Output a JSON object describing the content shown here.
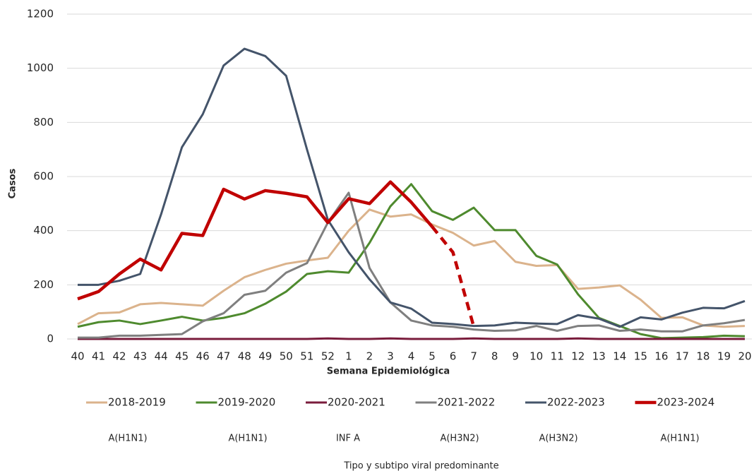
{
  "chart_data": {
    "type": "line",
    "y_label": "Casos",
    "x_label": "Semana Epidemiológica",
    "categories": [
      "40",
      "41",
      "42",
      "43",
      "44",
      "45",
      "46",
      "47",
      "48",
      "49",
      "50",
      "51",
      "52",
      "1",
      "2",
      "3",
      "4",
      "5",
      "6",
      "7",
      "8",
      "9",
      "10",
      "11",
      "12",
      "13",
      "14",
      "15",
      "16",
      "17",
      "18",
      "19",
      "20"
    ],
    "ylim": [
      0,
      1200
    ],
    "yticks": [
      0,
      200,
      400,
      600,
      800,
      1000,
      1200
    ],
    "grid": true,
    "series": [
      {
        "name": "2018-2019",
        "color": "#dbb38c",
        "width": 3,
        "values": [
          55,
          95,
          98,
          128,
          133,
          128,
          123,
          178,
          228,
          255,
          278,
          290,
          300,
          400,
          478,
          452,
          460,
          423,
          392,
          345,
          362,
          285,
          270,
          273,
          185,
          190,
          198,
          145,
          78,
          80,
          50,
          45,
          48
        ]
      },
      {
        "name": "2019-2020",
        "color": "#4e8a2e",
        "width": 3,
        "values": [
          45,
          62,
          68,
          55,
          68,
          82,
          68,
          78,
          95,
          130,
          175,
          240,
          250,
          245,
          355,
          490,
          572,
          472,
          440,
          485,
          402,
          402,
          307,
          275,
          165,
          78,
          48,
          18,
          3,
          5,
          7,
          12,
          10
        ]
      },
      {
        "name": "2020-2021",
        "color": "#7a1c3c",
        "width": 3,
        "values": [
          0,
          0,
          0,
          0,
          0,
          0,
          0,
          0,
          0,
          0,
          0,
          0,
          2,
          0,
          0,
          2,
          0,
          0,
          0,
          2,
          0,
          0,
          0,
          0,
          2,
          0,
          0,
          0,
          0,
          0,
          0,
          0,
          0
        ]
      },
      {
        "name": "2021-2022",
        "color": "#7f7f7f",
        "width": 3,
        "values": [
          5,
          5,
          12,
          12,
          15,
          18,
          65,
          95,
          163,
          178,
          245,
          280,
          430,
          540,
          262,
          135,
          68,
          50,
          45,
          35,
          30,
          32,
          48,
          30,
          48,
          50,
          30,
          35,
          28,
          28,
          50,
          58,
          70
        ]
      },
      {
        "name": "2022-2023",
        "color": "#44546a",
        "width": 3,
        "values": [
          200,
          200,
          215,
          240,
          460,
          708,
          830,
          1010,
          1072,
          1045,
          972,
          700,
          440,
          320,
          220,
          135,
          112,
          60,
          55,
          48,
          50,
          60,
          57,
          55,
          88,
          75,
          45,
          80,
          72,
          97,
          115,
          113,
          140
        ]
      },
      {
        "name": "2023-2024",
        "color": "#c00000",
        "width": 4.5,
        "dash_from_category": "5",
        "values": [
          148,
          175,
          240,
          295,
          255,
          390,
          382,
          553,
          517,
          548,
          538,
          525,
          430,
          518,
          500,
          580,
          505,
          415,
          320,
          45,
          null,
          null,
          null,
          null,
          null,
          null,
          null,
          null,
          null,
          null,
          null,
          null,
          null
        ]
      }
    ],
    "subtype_labels": [
      "A(H1N1)",
      "A(H1N1)",
      "INF A",
      "A(H3N2)",
      "A(H3N2)",
      "A(H1N1)"
    ],
    "subtype_caption": "Tipo y subtipo viral predominante"
  }
}
